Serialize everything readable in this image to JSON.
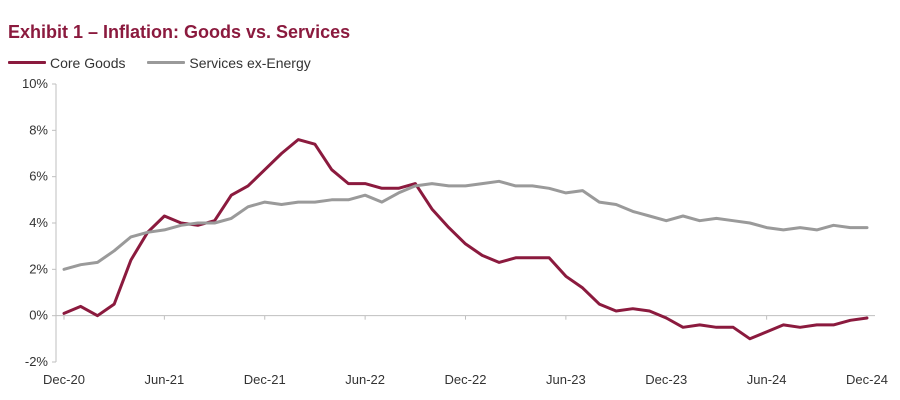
{
  "title": "Exhibit 1 – Inflation: Goods vs. Services",
  "colors": {
    "core_goods": "#8b1a3e",
    "services": "#9a9a9a",
    "axis": "#bfbfbf"
  },
  "legend": [
    {
      "name": "Core Goods",
      "color": "#8b1a3e"
    },
    {
      "name": "Services ex-Energy",
      "color": "#9a9a9a"
    }
  ],
  "chart_data": {
    "type": "line",
    "title": "Exhibit 1 – Inflation: Goods vs. Services",
    "xlabel": "",
    "ylabel": "",
    "ylim": [
      -2,
      10
    ],
    "y_ticks": [
      -2,
      0,
      2,
      4,
      6,
      8,
      10
    ],
    "y_tick_labels": [
      "-2%",
      "0%",
      "2%",
      "4%",
      "6%",
      "8%",
      "10%"
    ],
    "x_tick_labels": [
      "Dec-20",
      "Jun-21",
      "Dec-21",
      "Jun-22",
      "Dec-22",
      "Jun-23",
      "Dec-23",
      "Jun-24",
      "Dec-24"
    ],
    "x_tick_positions": [
      "2020-12",
      "2021-06",
      "2021-12",
      "2022-06",
      "2022-12",
      "2023-06",
      "2023-12",
      "2024-06",
      "2024-12"
    ],
    "x": [
      "2020-12",
      "2021-01",
      "2021-02",
      "2021-03",
      "2021-04",
      "2021-05",
      "2021-06",
      "2021-07",
      "2021-08",
      "2021-09",
      "2021-10",
      "2021-11",
      "2021-12",
      "2022-01",
      "2022-02",
      "2022-03",
      "2022-04",
      "2022-05",
      "2022-06",
      "2022-07",
      "2022-08",
      "2022-09",
      "2022-10",
      "2022-11",
      "2022-12",
      "2023-01",
      "2023-02",
      "2023-03",
      "2023-04",
      "2023-05",
      "2023-06",
      "2023-07",
      "2023-08",
      "2023-09",
      "2023-10",
      "2023-11",
      "2023-12",
      "2024-01",
      "2024-02",
      "2024-03",
      "2024-04",
      "2024-05",
      "2024-06",
      "2024-07",
      "2024-08",
      "2024-09",
      "2024-10",
      "2024-11",
      "2024-12"
    ],
    "grid": false,
    "legend_position": "top-left",
    "series": [
      {
        "name": "Core Goods",
        "color": "#8b1a3e",
        "values": [
          0.1,
          0.4,
          0.0,
          0.5,
          2.4,
          3.6,
          4.3,
          4.0,
          3.9,
          4.1,
          5.2,
          5.6,
          6.3,
          7.0,
          7.6,
          7.4,
          6.3,
          5.7,
          5.7,
          5.5,
          5.5,
          5.7,
          4.6,
          3.8,
          3.1,
          2.6,
          2.3,
          2.5,
          2.5,
          2.5,
          1.7,
          1.2,
          0.5,
          0.2,
          0.3,
          0.2,
          -0.1,
          -0.5,
          -0.4,
          -0.5,
          -0.5,
          -1.0,
          -0.7,
          -0.4,
          -0.5,
          -0.4,
          -0.4,
          -0.2,
          -0.1
        ]
      },
      {
        "name": "Services ex-Energy",
        "color": "#9a9a9a",
        "values": [
          2.0,
          2.2,
          2.3,
          2.8,
          3.4,
          3.6,
          3.7,
          3.9,
          4.0,
          4.0,
          4.2,
          4.7,
          4.9,
          4.8,
          4.9,
          4.9,
          5.0,
          5.0,
          5.2,
          4.9,
          5.3,
          5.6,
          5.7,
          5.6,
          5.6,
          5.7,
          5.8,
          5.6,
          5.6,
          5.5,
          5.3,
          5.4,
          4.9,
          4.8,
          4.5,
          4.3,
          4.1,
          4.3,
          4.1,
          4.2,
          4.1,
          4.0,
          3.8,
          3.7,
          3.8,
          3.7,
          3.9,
          3.8,
          3.8
        ]
      }
    ]
  }
}
